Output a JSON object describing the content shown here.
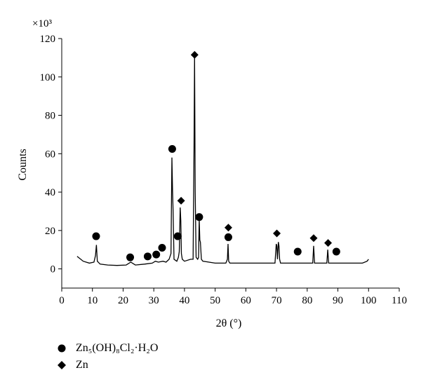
{
  "chart_data": {
    "type": "line",
    "xlabel": "2θ (°)",
    "ylabel": "Counts",
    "multiplier": "×10³",
    "xlim": [
      0,
      110
    ],
    "ylim": [
      -10,
      120
    ],
    "x_ticks": [
      0,
      10,
      20,
      30,
      40,
      50,
      60,
      70,
      80,
      90,
      100,
      110
    ],
    "y_ticks": [
      0,
      20,
      40,
      60,
      80,
      100,
      120
    ],
    "grid": false,
    "legend_position": "bottom-left",
    "series": [
      {
        "x": [
          5,
          7,
          9,
          10.5,
          11,
          11.3,
          11.6,
          12.5,
          15,
          18,
          21,
          22.5,
          24,
          27,
          29.5,
          30.5,
          31.5,
          33,
          34,
          35,
          35.6,
          35.9,
          36.1,
          36.3,
          36.6,
          37.5,
          38,
          38.3,
          38.6,
          38.8,
          39,
          39.3,
          40,
          42,
          42.8,
          43.1,
          43.3,
          43.5,
          43.8,
          44.3,
          44.6,
          44.8,
          45,
          45.2,
          45.5,
          46,
          50,
          53.5,
          54,
          54.2,
          54.4,
          54.8,
          57,
          62,
          66,
          69.5,
          69.9,
          70.1,
          70.3,
          70.6,
          70.8,
          71,
          71.3,
          75,
          78,
          81.8,
          82.1,
          82.4,
          82.8,
          85,
          86.4,
          86.7,
          87,
          87.3,
          90,
          95,
          98,
          99.5,
          100
        ],
        "y": [
          6.5,
          4,
          3,
          3.5,
          7,
          12.5,
          4,
          2.5,
          2,
          1.8,
          2,
          3.5,
          2,
          2.5,
          3,
          4,
          3.5,
          4,
          3.5,
          5,
          8,
          58,
          41,
          30,
          5,
          4,
          6,
          9,
          32,
          25,
          8,
          5,
          4,
          5,
          5,
          62,
          111,
          40,
          6,
          5,
          6,
          26,
          15,
          14,
          5,
          4,
          3,
          3,
          5,
          13,
          4,
          3,
          3,
          3,
          3,
          3,
          13,
          12,
          5,
          14,
          12,
          5,
          3,
          3,
          3,
          3,
          12,
          3,
          3,
          3,
          3,
          10,
          3,
          3,
          3,
          3,
          3,
          4,
          5
        ]
      }
    ],
    "markers": {
      "Zn5(OH)8Cl2·H2O": {
        "shape": "circle",
        "points": [
          [
            11.2,
            17
          ],
          [
            22.3,
            6
          ],
          [
            28,
            6.5
          ],
          [
            30.8,
            7.5
          ],
          [
            32.7,
            11
          ],
          [
            36,
            62.5
          ],
          [
            37.8,
            17
          ],
          [
            44.8,
            27
          ],
          [
            54.3,
            16.5
          ],
          [
            76.9,
            9
          ],
          [
            89.5,
            9
          ]
        ]
      },
      "Zn": {
        "shape": "diamond",
        "points": [
          [
            43.3,
            111.5
          ],
          [
            38.9,
            35.5
          ],
          [
            54.3,
            21.5
          ],
          [
            70.1,
            18.5
          ],
          [
            82.1,
            16
          ],
          [
            86.8,
            13.5
          ]
        ]
      }
    },
    "legend": [
      {
        "name": "Zn₅(OH)₈Cl₂·H₂O",
        "shape": "circle"
      },
      {
        "name": "Zn",
        "shape": "diamond"
      }
    ]
  }
}
